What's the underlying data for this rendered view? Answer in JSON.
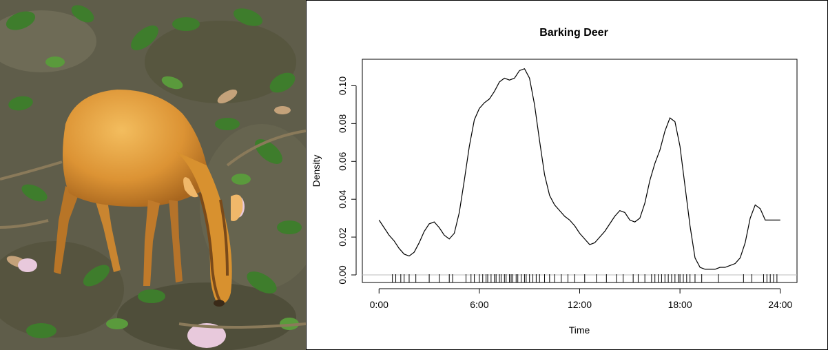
{
  "photo": {
    "subject": "barking-deer-camera-trap-photo",
    "colors": {
      "ground": "#6b6a55",
      "leaf": "#3f7a2e",
      "deer_body": "#d9912f",
      "deer_light": "#f0b85a"
    }
  },
  "chart_data": {
    "type": "line",
    "title": "Barking Deer",
    "xlabel": "Time",
    "ylabel": "Density",
    "xlim": [
      -1.0,
      25.0
    ],
    "ylim": [
      -0.004,
      0.114
    ],
    "x_ticks": [
      0,
      6,
      12,
      18,
      24
    ],
    "x_tick_labels": [
      "0:00",
      "6:00",
      "12:00",
      "18:00",
      "24:00"
    ],
    "y_ticks": [
      0.0,
      0.02,
      0.04,
      0.06,
      0.08,
      0.1
    ],
    "y_tick_labels": [
      "0.00",
      "0.02",
      "0.04",
      "0.06",
      "0.08",
      "0.10"
    ],
    "grid": false,
    "series": [
      {
        "color": "#000000",
        "x": [
          0.0,
          0.3,
          0.6,
          0.9,
          1.2,
          1.5,
          1.8,
          2.1,
          2.4,
          2.7,
          3.0,
          3.3,
          3.6,
          3.9,
          4.2,
          4.5,
          4.8,
          5.1,
          5.4,
          5.7,
          6.0,
          6.3,
          6.6,
          6.9,
          7.2,
          7.5,
          7.8,
          8.1,
          8.4,
          8.7,
          9.0,
          9.3,
          9.6,
          9.9,
          10.2,
          10.5,
          10.8,
          11.1,
          11.4,
          11.7,
          12.0,
          12.3,
          12.6,
          12.9,
          13.2,
          13.5,
          13.8,
          14.1,
          14.4,
          14.7,
          15.0,
          15.3,
          15.6,
          15.9,
          16.2,
          16.5,
          16.8,
          17.1,
          17.4,
          17.7,
          18.0,
          18.3,
          18.6,
          18.9,
          19.2,
          19.5,
          19.8,
          20.1,
          20.4,
          20.7,
          21.0,
          21.3,
          21.6,
          21.9,
          22.2,
          22.5,
          22.8,
          23.1,
          23.4,
          23.7,
          24.0
        ],
        "y": [
          0.029,
          0.025,
          0.021,
          0.018,
          0.014,
          0.011,
          0.01,
          0.012,
          0.017,
          0.023,
          0.027,
          0.028,
          0.025,
          0.021,
          0.019,
          0.022,
          0.033,
          0.05,
          0.068,
          0.082,
          0.088,
          0.091,
          0.093,
          0.097,
          0.102,
          0.104,
          0.103,
          0.104,
          0.108,
          0.109,
          0.104,
          0.09,
          0.071,
          0.053,
          0.042,
          0.037,
          0.034,
          0.031,
          0.029,
          0.026,
          0.022,
          0.019,
          0.016,
          0.017,
          0.02,
          0.023,
          0.027,
          0.031,
          0.034,
          0.033,
          0.029,
          0.028,
          0.03,
          0.038,
          0.05,
          0.059,
          0.066,
          0.076,
          0.083,
          0.081,
          0.068,
          0.047,
          0.026,
          0.009,
          0.004,
          0.003,
          0.003,
          0.003,
          0.004,
          0.004,
          0.005,
          0.006,
          0.009,
          0.017,
          0.03,
          0.037,
          0.035,
          0.029,
          0.029,
          0.029,
          0.029
        ]
      }
    ],
    "rug": [
      0.8,
      1.0,
      1.3,
      1.5,
      1.8,
      2.2,
      3.0,
      3.6,
      4.2,
      4.4,
      5.2,
      5.5,
      5.7,
      6.0,
      6.2,
      6.4,
      6.5,
      6.7,
      6.9,
      7.0,
      7.2,
      7.3,
      7.5,
      7.6,
      7.8,
      7.9,
      8.0,
      8.2,
      8.3,
      8.5,
      8.7,
      8.8,
      9.0,
      9.2,
      9.4,
      9.6,
      9.9,
      10.2,
      10.5,
      10.9,
      11.3,
      11.7,
      12.3,
      13.0,
      13.6,
      14.2,
      14.6,
      15.2,
      15.5,
      15.9,
      16.3,
      16.5,
      16.7,
      16.9,
      17.1,
      17.3,
      17.5,
      17.7,
      17.9,
      18.0,
      18.2,
      18.4,
      18.6,
      18.9,
      19.3,
      20.3,
      21.8,
      22.3,
      23.0,
      23.2,
      23.4,
      23.6,
      23.8
    ]
  }
}
